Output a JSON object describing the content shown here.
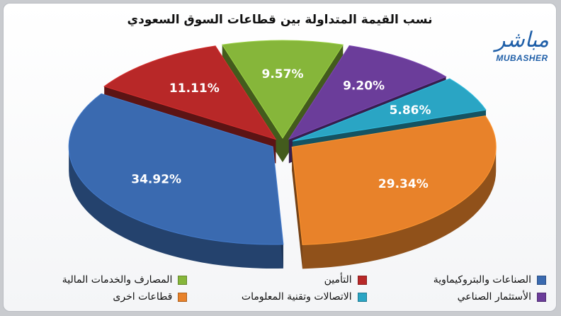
{
  "chart_data": {
    "type": "pie",
    "title": "نسب القيمة المتداولة بين قطاعات السوق السعودي",
    "slices": [
      {
        "name": "الصناعات والبتروكيماوية",
        "value": 34.92,
        "label": "34.92%",
        "color": "#3a6ab0"
      },
      {
        "name": "التأمين",
        "value": 11.11,
        "label": "11.11%",
        "color": "#b82828"
      },
      {
        "name": "المصارف والخدمات المالية",
        "value": 9.57,
        "label": "9.57%",
        "color": "#86b63a"
      },
      {
        "name": "الأستثمار الصناعي",
        "value": 9.2,
        "label": "9.20%",
        "color": "#6b3d9a"
      },
      {
        "name": "الاتصالات وتقنية المعلومات",
        "value": 5.86,
        "label": "5.86%",
        "color": "#2aa5c4"
      },
      {
        "name": "قطاعات اخرى",
        "value": 29.34,
        "label": "29.34%",
        "color": "#e8822a"
      }
    ],
    "legend_position": "bottom"
  },
  "logo": {
    "arabic": "مباشر",
    "english": "MUBASHER"
  },
  "legend": [
    {
      "label": "الصناعات والبتروكيماوية",
      "color": "#3a6ab0"
    },
    {
      "label": "التأمين",
      "color": "#b82828"
    },
    {
      "label": "المصارف والخدمات المالية",
      "color": "#86b63a"
    },
    {
      "label": "الأستثمار الصناعي",
      "color": "#6b3d9a"
    },
    {
      "label": "الاتصالات وتقنية المعلومات",
      "color": "#2aa5c4"
    },
    {
      "label": "قطاعات اخرى",
      "color": "#e8822a"
    }
  ]
}
